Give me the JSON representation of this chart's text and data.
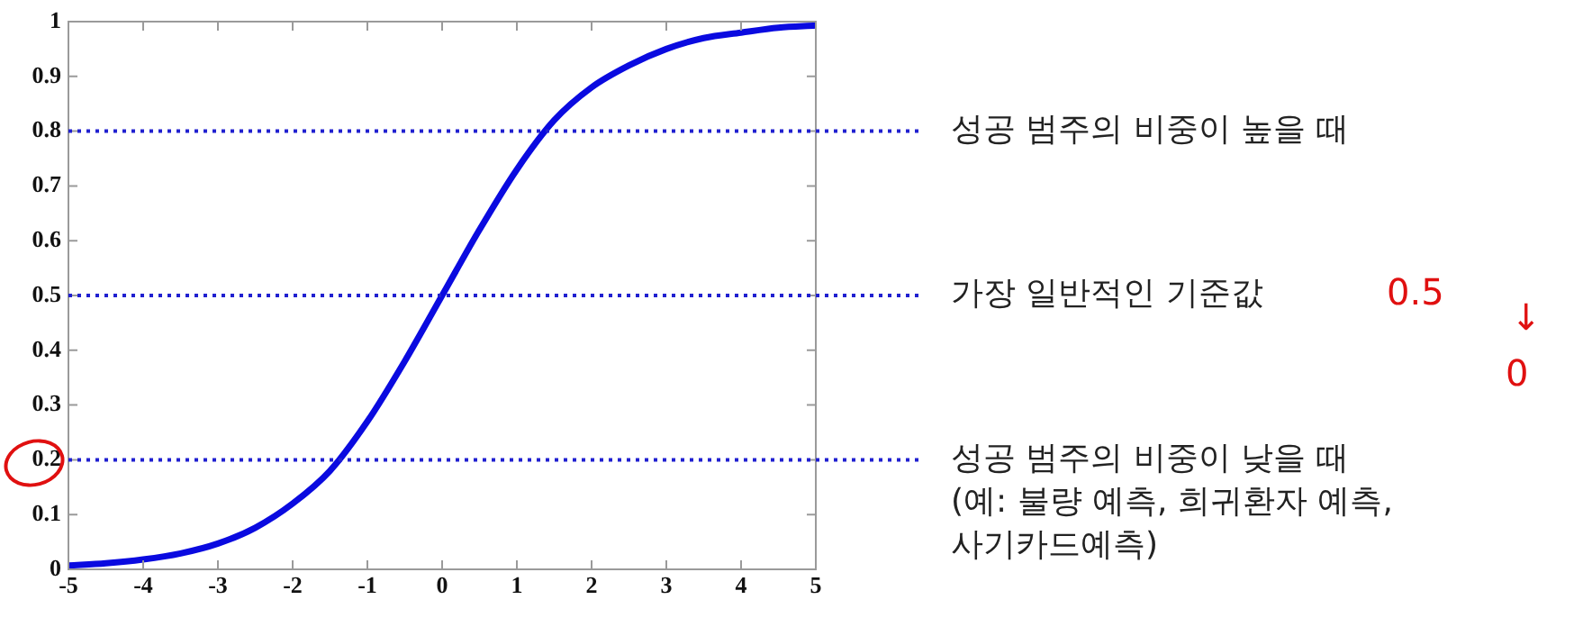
{
  "chart_data": {
    "type": "line",
    "x": [
      -5,
      -4.5,
      -4,
      -3.5,
      -3,
      -2.5,
      -2,
      -1.5,
      -1,
      -0.5,
      0,
      0.5,
      1,
      1.5,
      2,
      2.5,
      3,
      3.5,
      4,
      4.5,
      5
    ],
    "series": [
      {
        "color": "#0a0ae0",
        "values": [
          0.007,
          0.011,
          0.018,
          0.029,
          0.047,
          0.076,
          0.12,
          0.18,
          0.27,
          0.38,
          0.5,
          0.62,
          0.73,
          0.82,
          0.88,
          0.92,
          0.95,
          0.97,
          0.98,
          0.989,
          0.993
        ]
      }
    ],
    "xlim": [
      -5,
      5
    ],
    "xticks": [
      -5,
      -4,
      -3,
      -2,
      -1,
      0,
      1,
      2,
      3,
      4,
      5
    ],
    "ylim": [
      0,
      1
    ],
    "yticks": [
      0,
      0.1,
      0.2,
      0.3,
      0.4,
      0.5,
      0.6,
      0.7,
      0.8,
      0.9,
      1
    ],
    "marker": "none",
    "line_style": "solid",
    "legend": false,
    "ref_lines": [
      {
        "axis": "y",
        "value": 0.8,
        "label": "성공 범주의 비중이 높을 때",
        "color": "#2020d0",
        "line_style": "dotted"
      },
      {
        "axis": "y",
        "value": 0.5,
        "label": "가장 일반적인 기준값",
        "color": "#2020d0",
        "line_style": "dotted"
      },
      {
        "axis": "y",
        "value": 0.2,
        "label": "성공 범주의 비중이 낮을 때\n(예: 불량 예측, 희귀환자 예측,\n사기카드예측)",
        "color": "#2020d0",
        "line_style": "dotted"
      }
    ],
    "annotations": [
      "0.5",
      "↓",
      "0"
    ]
  }
}
